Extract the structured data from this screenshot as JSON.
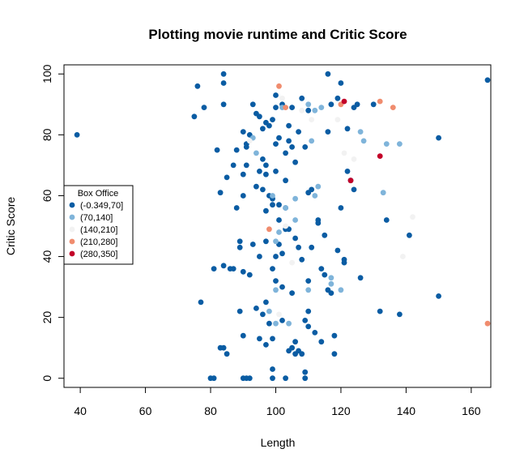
{
  "chart_data": {
    "type": "scatter",
    "title": "Plotting movie runtime and Critic Score",
    "xlabel": "Length",
    "ylabel": "Critic Score",
    "xlim": [
      35,
      166
    ],
    "ylim": [
      -3,
      103
    ],
    "xticks": [
      40,
      60,
      80,
      100,
      120,
      140,
      160
    ],
    "yticks": [
      0,
      20,
      40,
      60,
      80,
      100
    ],
    "grid": false,
    "legend": {
      "title": "Box Office",
      "placement": "left",
      "entries": [
        {
          "label": "(-0.349,70]",
          "color": "#0A5CA3"
        },
        {
          "label": "(70,140]",
          "color": "#7FB4DA"
        },
        {
          "label": "(140,210]",
          "color": "#F2F2F2"
        },
        {
          "label": "(210,280]",
          "color": "#F08C6E"
        },
        {
          "label": "(280,350]",
          "color": "#C30028"
        }
      ]
    },
    "series": [
      {
        "name": "(-0.349,70]",
        "color": "#0A5CA3",
        "points": [
          [
            39,
            80
          ],
          [
            75,
            86
          ],
          [
            76,
            96
          ],
          [
            78,
            89
          ],
          [
            81,
            36
          ],
          [
            82,
            75
          ],
          [
            83,
            61
          ],
          [
            84,
            100
          ],
          [
            84,
            97
          ],
          [
            84,
            37
          ],
          [
            84,
            90
          ],
          [
            85,
            66
          ],
          [
            86,
            36
          ],
          [
            87,
            70
          ],
          [
            87,
            36
          ],
          [
            88,
            56
          ],
          [
            88,
            75
          ],
          [
            89,
            45
          ],
          [
            89,
            43
          ],
          [
            89,
            22
          ],
          [
            90,
            81
          ],
          [
            90,
            67
          ],
          [
            90,
            60
          ],
          [
            90,
            35
          ],
          [
            90,
            14
          ],
          [
            91,
            77
          ],
          [
            91,
            76
          ],
          [
            92,
            80
          ],
          [
            92,
            34
          ],
          [
            93,
            90
          ],
          [
            93,
            44
          ],
          [
            94,
            87
          ],
          [
            94,
            63
          ],
          [
            94,
            23
          ],
          [
            95,
            86
          ],
          [
            95,
            68
          ],
          [
            95,
            40
          ],
          [
            95,
            13
          ],
          [
            96,
            82
          ],
          [
            96,
            62
          ],
          [
            96,
            21
          ],
          [
            97,
            84
          ],
          [
            97,
            70
          ],
          [
            97,
            67
          ],
          [
            97,
            55
          ],
          [
            97,
            45
          ],
          [
            97,
            25
          ],
          [
            98,
            83
          ],
          [
            98,
            60
          ],
          [
            98,
            18
          ],
          [
            99,
            85
          ],
          [
            99,
            57
          ],
          [
            99,
            36
          ],
          [
            99,
            13
          ],
          [
            100,
            93
          ],
          [
            100,
            89
          ],
          [
            100,
            77
          ],
          [
            100,
            68
          ],
          [
            100,
            32
          ],
          [
            101,
            79
          ],
          [
            101,
            52
          ],
          [
            101,
            44
          ],
          [
            102,
            90
          ],
          [
            102,
            41
          ],
          [
            102,
            19
          ],
          [
            103,
            74
          ],
          [
            103,
            65
          ],
          [
            103,
            56
          ],
          [
            104,
            83
          ],
          [
            104,
            78
          ],
          [
            104,
            49
          ],
          [
            104,
            9
          ],
          [
            105,
            89
          ],
          [
            105,
            76
          ],
          [
            105,
            28
          ],
          [
            106,
            71
          ],
          [
            106,
            8
          ],
          [
            107,
            81
          ],
          [
            107,
            43
          ],
          [
            108,
            92
          ],
          [
            108,
            39
          ],
          [
            108,
            8
          ],
          [
            109,
            76
          ],
          [
            109,
            19
          ],
          [
            110,
            88
          ],
          [
            110,
            61
          ],
          [
            110,
            17
          ],
          [
            111,
            62
          ],
          [
            111,
            43
          ],
          [
            112,
            15
          ],
          [
            113,
            51
          ],
          [
            114,
            12
          ],
          [
            115,
            47
          ],
          [
            116,
            100
          ],
          [
            116,
            81
          ],
          [
            116,
            29
          ],
          [
            117,
            90
          ],
          [
            118,
            14
          ],
          [
            118,
            8
          ],
          [
            119,
            92
          ],
          [
            120,
            56
          ],
          [
            120,
            97
          ],
          [
            121,
            39
          ],
          [
            122,
            82
          ],
          [
            122,
            68
          ],
          [
            123,
            65
          ],
          [
            124,
            62
          ],
          [
            124,
            89
          ],
          [
            125,
            90
          ],
          [
            126,
            33
          ],
          [
            130,
            90
          ],
          [
            132,
            22
          ],
          [
            134,
            52
          ],
          [
            138,
            21
          ],
          [
            141,
            47
          ],
          [
            150,
            79
          ],
          [
            150,
            27
          ],
          [
            165,
            98
          ],
          [
            77,
            25
          ],
          [
            80,
            0
          ],
          [
            81,
            0
          ],
          [
            90,
            0
          ],
          [
            91,
            0
          ],
          [
            92,
            0
          ],
          [
            99,
            0
          ],
          [
            99,
            3
          ],
          [
            103,
            0
          ],
          [
            109,
            2
          ],
          [
            109,
            0
          ],
          [
            83,
            10
          ],
          [
            84,
            10
          ],
          [
            85,
            8
          ],
          [
            97,
            11
          ],
          [
            105,
            10
          ],
          [
            106,
            12
          ],
          [
            107,
            9
          ],
          [
            110,
            22
          ],
          [
            110,
            32
          ],
          [
            114,
            36
          ],
          [
            115,
            34
          ],
          [
            117,
            28
          ],
          [
            119,
            42
          ],
          [
            121,
            38
          ],
          [
            113,
            52
          ],
          [
            101,
            57
          ],
          [
            99,
            59
          ],
          [
            103,
            49
          ],
          [
            106,
            46
          ],
          [
            102,
            30
          ],
          [
            100,
            40
          ],
          [
            91,
            70
          ],
          [
            96,
            72
          ]
        ]
      },
      {
        "name": "(70,140]",
        "color": "#7FB4DA",
        "points": [
          [
            93,
            79
          ],
          [
            94,
            74
          ],
          [
            99,
            60
          ],
          [
            100,
            29
          ],
          [
            100,
            45
          ],
          [
            102,
            89
          ],
          [
            103,
            56
          ],
          [
            104,
            18
          ],
          [
            106,
            52
          ],
          [
            106,
            59
          ],
          [
            110,
            90
          ],
          [
            110,
            29
          ],
          [
            111,
            78
          ],
          [
            112,
            88
          ],
          [
            113,
            63
          ],
          [
            114,
            89
          ],
          [
            117,
            33
          ],
          [
            117,
            31
          ],
          [
            120,
            29
          ],
          [
            126,
            81
          ],
          [
            127,
            78
          ],
          [
            133,
            61
          ],
          [
            134,
            77
          ],
          [
            138,
            77
          ],
          [
            100,
            18
          ],
          [
            98,
            22
          ],
          [
            101,
            48
          ],
          [
            112,
            60
          ]
        ]
      },
      {
        "name": "(140,210]",
        "color": "#F2F2F2",
        "points": [
          [
            92,
            78
          ],
          [
            101,
            21
          ],
          [
            102,
            92
          ],
          [
            103,
            50
          ],
          [
            105,
            38
          ],
          [
            108,
            88
          ],
          [
            111,
            85
          ],
          [
            119,
            85
          ],
          [
            121,
            74
          ],
          [
            124,
            72
          ],
          [
            142,
            53
          ],
          [
            139,
            40
          ]
        ]
      },
      {
        "name": "(210,280]",
        "color": "#F08C6E",
        "points": [
          [
            98,
            49
          ],
          [
            101,
            96
          ],
          [
            103,
            89
          ],
          [
            120,
            90
          ],
          [
            132,
            91
          ],
          [
            136,
            89
          ],
          [
            165,
            18
          ]
        ]
      },
      {
        "name": "(280,350]",
        "color": "#C30028",
        "points": [
          [
            121,
            91
          ],
          [
            123,
            65
          ],
          [
            132,
            73
          ]
        ]
      }
    ]
  }
}
